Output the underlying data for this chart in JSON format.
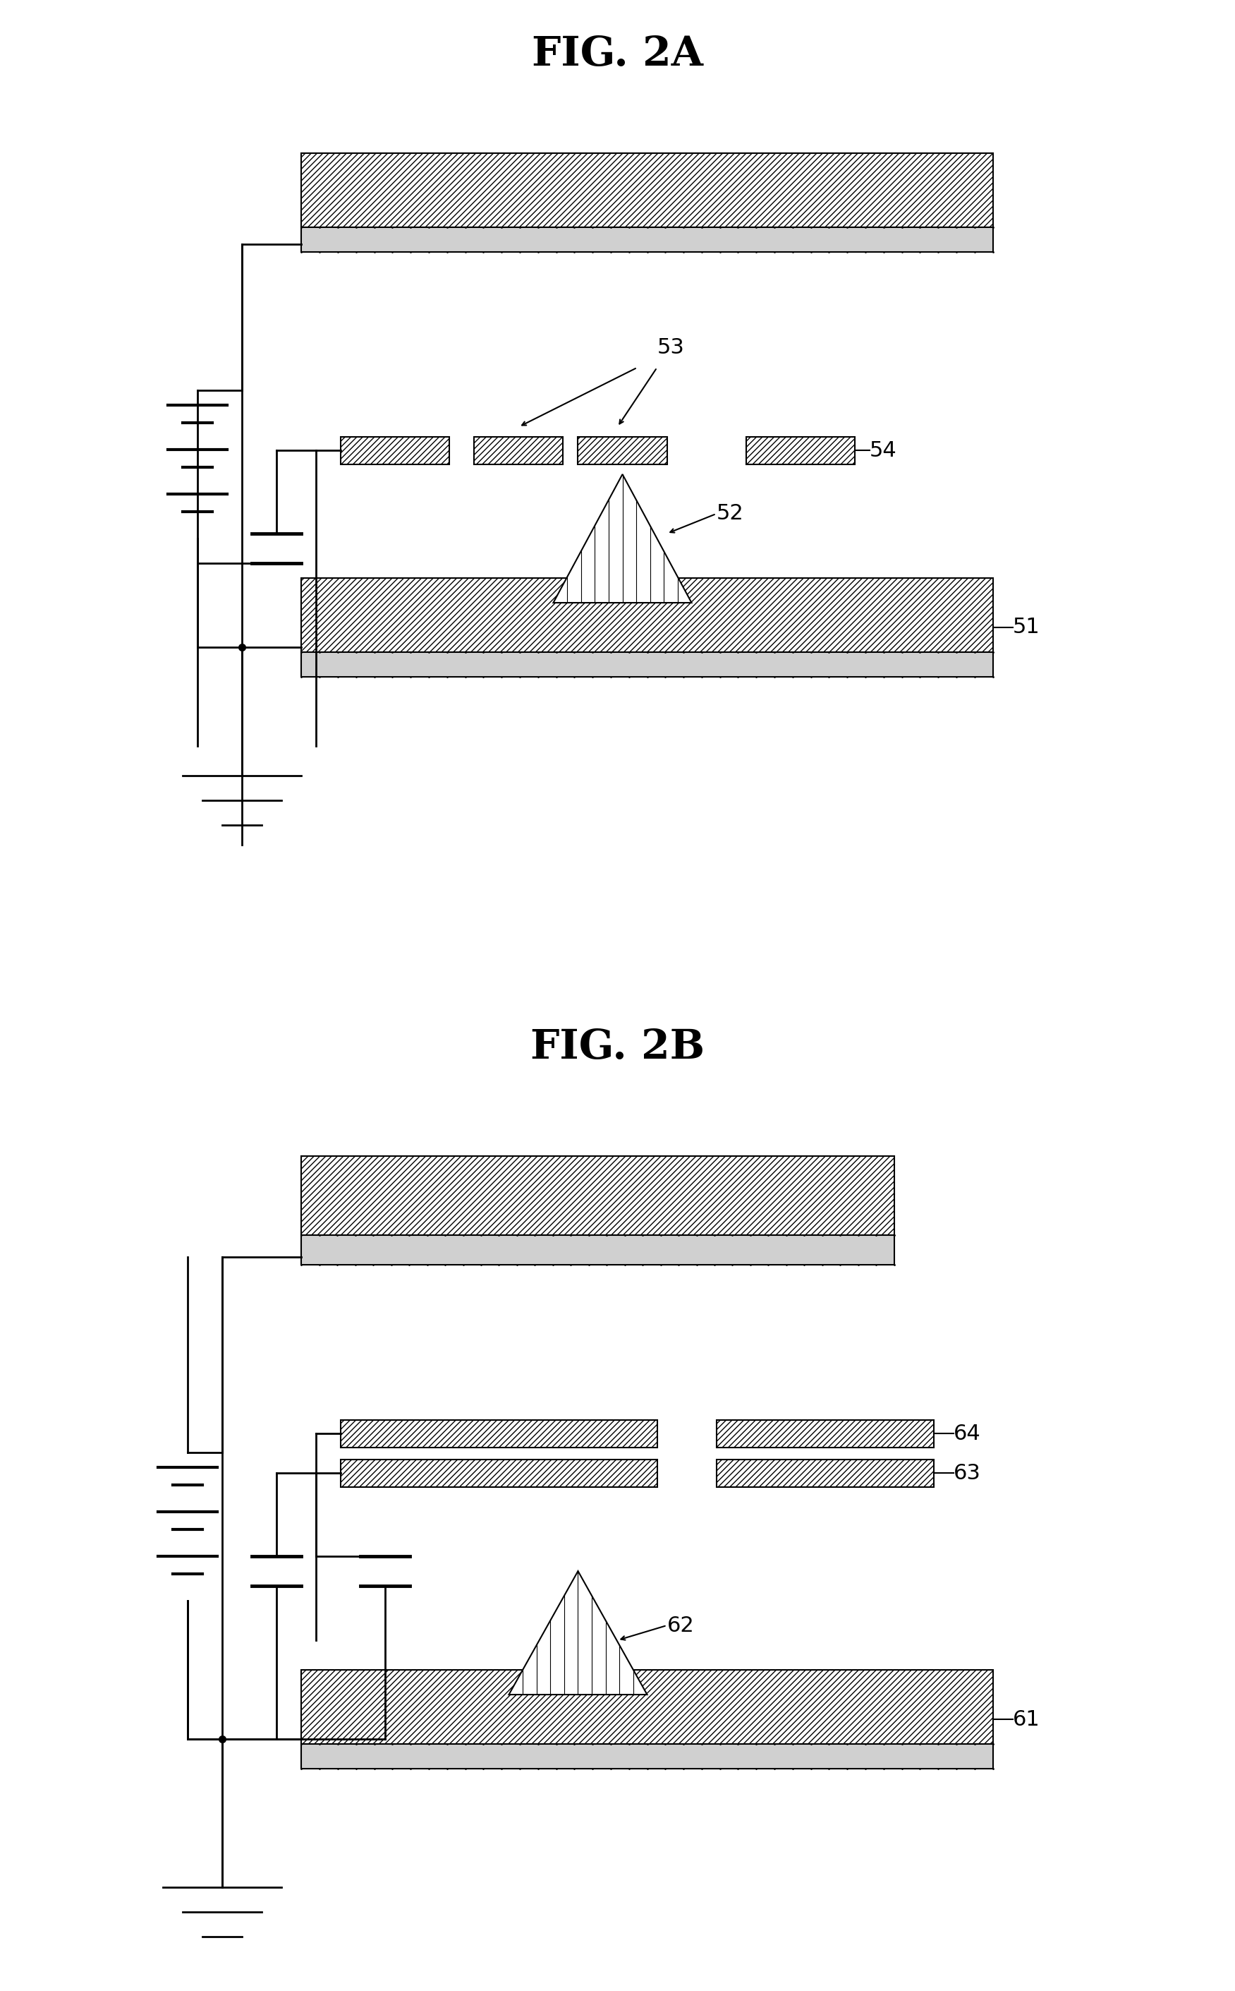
{
  "fig_title_A": "FIG. 2A",
  "fig_title_B": "FIG. 2B",
  "bg_color": "#ffffff",
  "hatch_color": "#000000",
  "label_fontsize": 22,
  "title_fontsize": 42,
  "line_color": "#000000",
  "fill_color": "#ffffff",
  "hatch_pattern": "////",
  "stipple_color": "#cccccc"
}
